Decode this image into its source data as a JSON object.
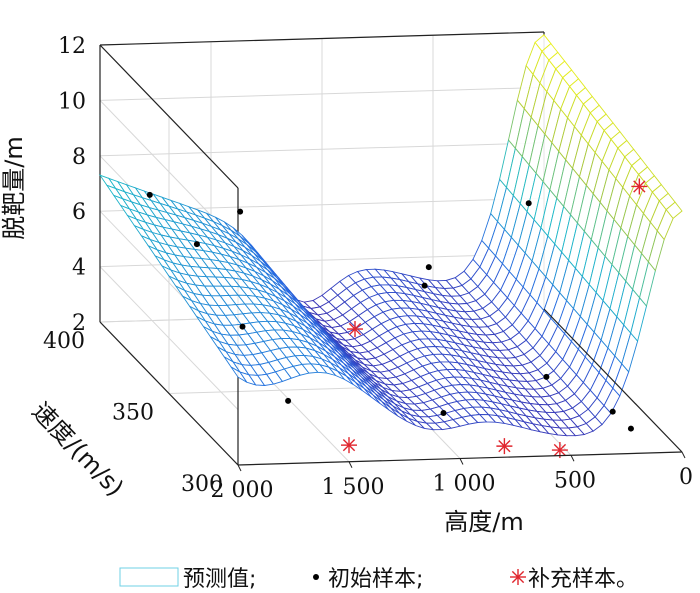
{
  "chart_data": {
    "type": "surface",
    "title": "",
    "xlabel": "高度/m",
    "ylabel": "速度/(m/s)",
    "zlabel": "脱靶量/m",
    "x_ticks": [
      "0",
      "500",
      "1 000",
      "1 500",
      "2 000"
    ],
    "y_ticks": [
      "300",
      "350",
      "400"
    ],
    "z_ticks": [
      "2",
      "4",
      "6",
      "8",
      "10",
      "12"
    ],
    "xlim": [
      0,
      2000
    ],
    "ylim": [
      300,
      400
    ],
    "zlim": [
      2,
      12
    ],
    "grid": true,
    "colormap": "parula",
    "legend_placement": "bottom",
    "legend": [
      {
        "marker": "surface-patch",
        "label": "预测值;"
      },
      {
        "marker": "dot",
        "label": "初始样本;"
      },
      {
        "marker": "asterisk",
        "label": "补充样本。"
      }
    ],
    "series": [
      {
        "name": "初始样本",
        "marker": "dot",
        "color": "#000000",
        "points": [
          {
            "x": 1900,
            "y": 380,
            "z": 7.6
          },
          {
            "x": 1750,
            "y": 370,
            "z": 6.3
          },
          {
            "x": 1700,
            "y": 345,
            "z": 4.6
          },
          {
            "x": 1650,
            "y": 320,
            "z": 3.2
          },
          {
            "x": 1400,
            "y": 395,
            "z": 6.1
          },
          {
            "x": 950,
            "y": 320,
            "z": 2.6
          },
          {
            "x": 550,
            "y": 395,
            "z": 3.9
          },
          {
            "x": 600,
            "y": 390,
            "z": 3.5
          },
          {
            "x": 100,
            "y": 395,
            "z": 6.1
          },
          {
            "x": 250,
            "y": 310,
            "z": 3.0
          },
          {
            "x": 230,
            "y": 300,
            "z": 2.9
          },
          {
            "x": 300,
            "y": 350,
            "z": 2.2
          }
        ]
      },
      {
        "name": "补充样本",
        "marker": "asterisk",
        "color": "#e0262e",
        "points": [
          {
            "x": 1500,
            "y": 300,
            "z": 2.6
          },
          {
            "x": 1100,
            "y": 360,
            "z": 3.6
          },
          {
            "x": 800,
            "y": 300,
            "z": 2.4
          },
          {
            "x": 550,
            "y": 300,
            "z": 2.2
          },
          {
            "x": 130,
            "y": 310,
            "z": 11.1
          }
        ]
      }
    ]
  }
}
